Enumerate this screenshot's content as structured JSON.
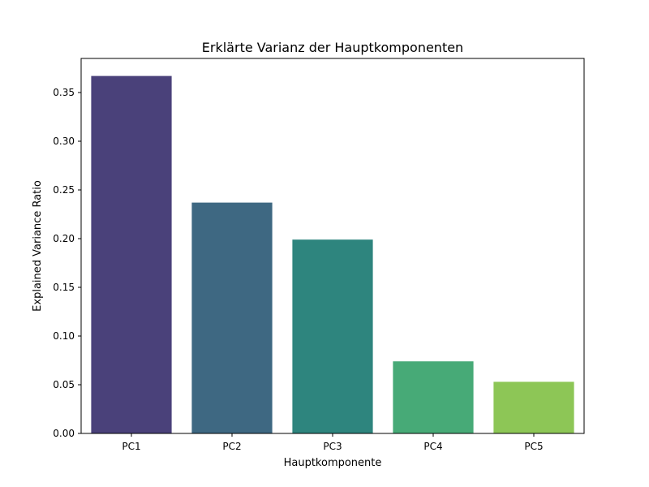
{
  "chart_data": {
    "type": "bar",
    "title": "Erklärte Varianz der Hauptkomponenten",
    "xlabel": "Hauptkomponente",
    "ylabel": "Explained Variance Ratio",
    "categories": [
      "PC1",
      "PC2",
      "PC3",
      "PC4",
      "PC5"
    ],
    "values": [
      0.367,
      0.237,
      0.199,
      0.074,
      0.053
    ],
    "colors": [
      "#4a417a",
      "#3e6882",
      "#2e857e",
      "#47aa77",
      "#8dc656"
    ],
    "ylim": [
      0,
      0.385
    ],
    "yticks": [
      0.0,
      0.05,
      0.1,
      0.15,
      0.2,
      0.25,
      0.3,
      0.35
    ],
    "ytick_labels": [
      "0.00",
      "0.05",
      "0.10",
      "0.15",
      "0.20",
      "0.25",
      "0.30",
      "0.35"
    ],
    "grid": false,
    "legend": false
  }
}
